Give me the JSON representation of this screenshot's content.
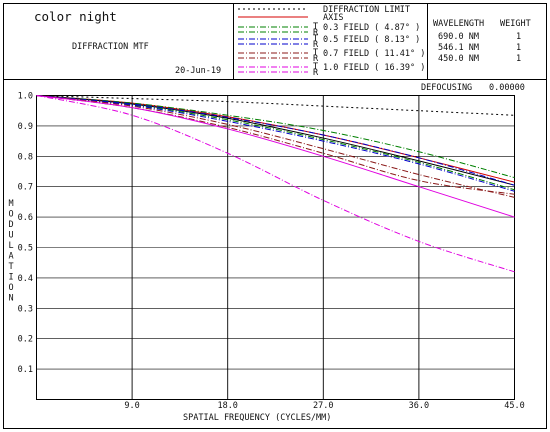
{
  "header": {
    "lens_name": "color night",
    "plot_title": "DIFFRACTION MTF",
    "date": "20-Jun-19",
    "defocusing_label": "DEFOCUSING",
    "defocusing_value": "0.00000"
  },
  "legend": {
    "entries": [
      {
        "label": "DIFFRACTION LIMIT",
        "style": "dotted",
        "color": "#000000",
        "tr": false
      },
      {
        "label": "AXIS",
        "style": "solid",
        "color": "#d40000",
        "tr": false
      },
      {
        "label": "0.3 FIELD ( 4.87° )",
        "style": "dashdot",
        "color": "#008000",
        "tr": true
      },
      {
        "label": "0.5 FIELD ( 8.13° )",
        "style": "dashdot",
        "color": "#0000cc",
        "tr": true
      },
      {
        "label": "0.7 FIELD ( 11.41° )",
        "style": "dashdot",
        "color": "#8b1a1a",
        "tr": true
      },
      {
        "label": "1.0 FIELD ( 16.39° )",
        "style": "dashdot",
        "color": "#e000e0",
        "tr": true
      }
    ],
    "tr_labels": [
      "T",
      "R"
    ]
  },
  "wavelengths": {
    "header_wavelength": "WAVELENGTH",
    "header_weight": "WEIGHT",
    "rows": [
      {
        "wavelength": "690.0 NM",
        "weight": "1"
      },
      {
        "wavelength": "546.1 NM",
        "weight": "1"
      },
      {
        "wavelength": "450.0 NM",
        "weight": "1"
      }
    ]
  },
  "chart_data": {
    "type": "line",
    "xlabel": "SPATIAL FREQUENCY (CYCLES/MM)",
    "ylabel": "MODULATION",
    "xlim": [
      0,
      45
    ],
    "ylim": [
      0,
      1
    ],
    "grid": true,
    "x_ticks": [
      "9.0",
      "18.0",
      "27.0",
      "36.0",
      "45.0"
    ],
    "y_ticks": [
      "0.1",
      "0.2",
      "0.3",
      "0.4",
      "0.5",
      "0.6",
      "0.7",
      "0.8",
      "0.9",
      "1.0"
    ],
    "x": [
      0,
      9,
      18,
      27,
      36,
      45
    ],
    "series": [
      {
        "name": "DIFFRACTION LIMIT",
        "color": "#000000",
        "dash": "2,3",
        "values": [
          1.0,
          0.99,
          0.98,
          0.965,
          0.95,
          0.935
        ]
      },
      {
        "name": "AXIS",
        "color": "#d40000",
        "dash": "",
        "values": [
          1.0,
          0.975,
          0.93,
          0.87,
          0.795,
          0.715
        ]
      },
      {
        "name": "AXIS",
        "color": "#000000",
        "dash": "",
        "values": [
          1.0,
          0.972,
          0.925,
          0.86,
          0.785,
          0.705
        ]
      },
      {
        "name": "0.3 FIELD T",
        "color": "#008000",
        "dash": "6,2,1,2",
        "values": [
          1.0,
          0.975,
          0.935,
          0.885,
          0.815,
          0.73
        ]
      },
      {
        "name": "0.3 FIELD R",
        "color": "#008000",
        "dash": "6,2,1,2",
        "values": [
          1.0,
          0.97,
          0.92,
          0.855,
          0.78,
          0.69
        ]
      },
      {
        "name": "0.5 FIELD T",
        "color": "#0000cc",
        "dash": "6,2,1,2",
        "values": [
          1.0,
          0.972,
          0.928,
          0.87,
          0.795,
          0.705
        ]
      },
      {
        "name": "0.5 FIELD R",
        "color": "#0000cc",
        "dash": "6,2,1,2",
        "values": [
          1.0,
          0.968,
          0.915,
          0.85,
          0.775,
          0.685
        ]
      },
      {
        "name": "0.7 FIELD T",
        "color": "#8b1a1a",
        "dash": "6,2,1,2",
        "values": [
          1.0,
          0.965,
          0.905,
          0.825,
          0.74,
          0.665
        ]
      },
      {
        "name": "0.7 FIELD R",
        "color": "#8b1a1a",
        "dash": "6,2,1,2",
        "values": [
          1.0,
          0.96,
          0.895,
          0.81,
          0.72,
          0.675
        ]
      },
      {
        "name": "1.0 FIELD T",
        "color": "#e000e0",
        "dash": "",
        "values": [
          1.0,
          0.96,
          0.89,
          0.8,
          0.7,
          0.6
        ]
      },
      {
        "name": "1.0 FIELD R",
        "color": "#e000e0",
        "dash": "6,2,1,2",
        "values": [
          1.0,
          0.935,
          0.81,
          0.655,
          0.52,
          0.42
        ]
      }
    ]
  }
}
